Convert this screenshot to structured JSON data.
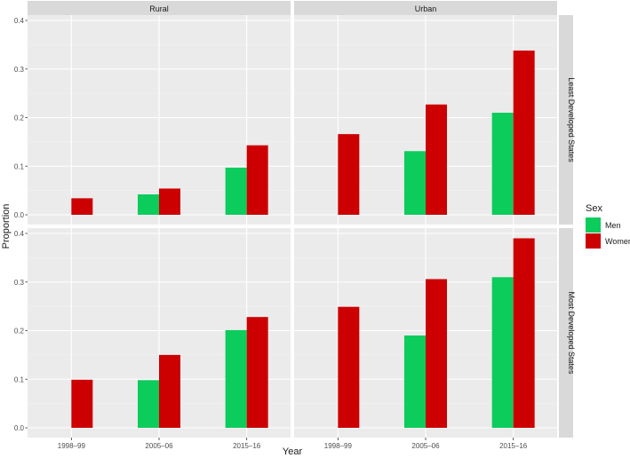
{
  "chart_data": {
    "type": "bar",
    "facet_cols": [
      "Rural",
      "Urban"
    ],
    "facet_rows": [
      "Least Developed States",
      "Most Developed States"
    ],
    "categories": [
      "1998–99",
      "2005–06",
      "2015–16"
    ],
    "xlabel": "Year",
    "ylabel": "Proportion",
    "ylim": [
      0,
      0.4
    ],
    "yticks": [
      "0.0",
      "0.1",
      "0.2",
      "0.3",
      "0.4"
    ],
    "grid": true,
    "legend": {
      "title": "Sex",
      "placement": "right",
      "entries": [
        {
          "name": "Men",
          "color": "#0ccc5c"
        },
        {
          "name": "Women",
          "color": "#cc0000"
        }
      ]
    },
    "panels": [
      {
        "col": "Rural",
        "row": "Least Developed States",
        "series": [
          {
            "name": "Men",
            "values": [
              null,
              0.042,
              0.097
            ]
          },
          {
            "name": "Women",
            "values": [
              0.034,
              0.054,
              0.143
            ]
          }
        ]
      },
      {
        "col": "Urban",
        "row": "Least Developed States",
        "series": [
          {
            "name": "Men",
            "values": [
              null,
              0.131,
              0.21
            ]
          },
          {
            "name": "Women",
            "values": [
              0.166,
              0.227,
              0.338
            ]
          }
        ]
      },
      {
        "col": "Rural",
        "row": "Most Developed States",
        "series": [
          {
            "name": "Men",
            "values": [
              null,
              0.098,
              0.201
            ]
          },
          {
            "name": "Women",
            "values": [
              0.099,
              0.15,
              0.228
            ]
          }
        ]
      },
      {
        "col": "Urban",
        "row": "Most Developed States",
        "series": [
          {
            "name": "Men",
            "values": [
              null,
              0.19,
              0.31
            ]
          },
          {
            "name": "Women",
            "values": [
              0.249,
              0.306,
              0.39
            ]
          }
        ]
      }
    ]
  }
}
